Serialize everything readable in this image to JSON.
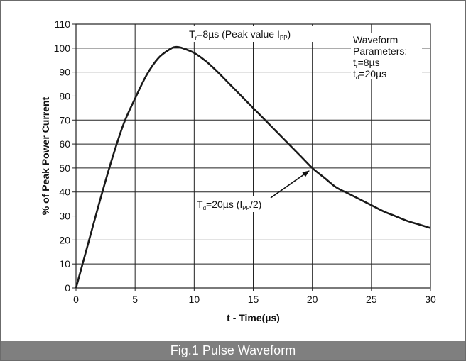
{
  "caption": "Fig.1 Pulse Waveform",
  "colors": {
    "caption_bg": "#7f7f7f",
    "curve": "#1a1a1a",
    "grid": "#222222"
  },
  "chart_data": {
    "type": "line",
    "title": "",
    "xlabel": "t - Time(µs)",
    "ylabel": "% of Peak Power Current",
    "xlim": [
      0,
      30
    ],
    "ylim": [
      0,
      110
    ],
    "x_ticks": [
      0,
      5,
      10,
      15,
      20,
      25,
      30
    ],
    "y_ticks": [
      0,
      10,
      20,
      30,
      40,
      50,
      60,
      70,
      80,
      90,
      100,
      110
    ],
    "grid": true,
    "series": [
      {
        "x": [
          0,
          1,
          2,
          3,
          4,
          5,
          6,
          7,
          8,
          8.5,
          9,
          10,
          11,
          12,
          13,
          14,
          15,
          16,
          17,
          18,
          19,
          20,
          21,
          22,
          23,
          24,
          25,
          26,
          27,
          28,
          29,
          30
        ],
        "y": [
          0,
          18,
          36,
          53,
          68,
          79,
          89,
          96,
          99.7,
          100.5,
          100,
          98,
          94.5,
          90,
          85,
          80,
          75,
          70,
          65,
          60,
          55,
          50,
          46,
          42,
          39.5,
          37,
          34.5,
          32,
          30,
          28,
          26.5,
          25
        ]
      }
    ],
    "annotations": {
      "peak": {
        "main": "T",
        "sub": "r",
        "rest": "=8µs (Peak value I",
        "sub2": "PP",
        "end": ")"
      },
      "half": {
        "main": "T",
        "sub": "d",
        "rest": "=20µs (I",
        "sub2": "PP",
        "end": "/2)"
      },
      "params": {
        "line1": "Waveform",
        "line2": "Parameters:",
        "tr_main": "t",
        "tr_sub": "r",
        "tr_rest": "=8µs",
        "td_main": "t",
        "td_sub": "d",
        "td_rest": "=20µs"
      }
    }
  }
}
